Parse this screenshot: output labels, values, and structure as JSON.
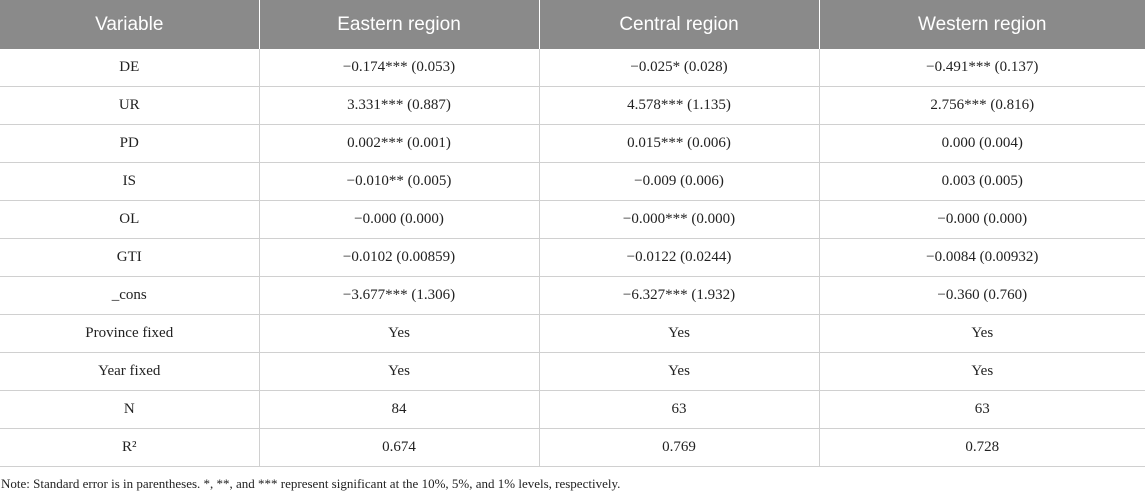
{
  "table": {
    "headers": [
      "Variable",
      "Eastern region",
      "Central region",
      "Western region"
    ],
    "rows": [
      [
        "DE",
        "−0.174*** (0.053)",
        "−0.025* (0.028)",
        "−0.491*** (0.137)"
      ],
      [
        "UR",
        "3.331*** (0.887)",
        "4.578*** (1.135)",
        "2.756*** (0.816)"
      ],
      [
        "PD",
        "0.002*** (0.001)",
        "0.015*** (0.006)",
        "0.000 (0.004)"
      ],
      [
        "IS",
        "−0.010** (0.005)",
        "−0.009 (0.006)",
        "0.003 (0.005)"
      ],
      [
        "OL",
        "−0.000 (0.000)",
        "−0.000*** (0.000)",
        "−0.000 (0.000)"
      ],
      [
        "GTI",
        "−0.0102 (0.00859)",
        "−0.0122 (0.0244)",
        "−0.0084 (0.00932)"
      ],
      [
        "_cons",
        "−3.677*** (1.306)",
        "−6.327*** (1.932)",
        "−0.360 (0.760)"
      ],
      [
        "Province fixed",
        "Yes",
        "Yes",
        "Yes"
      ],
      [
        "Year fixed",
        "Yes",
        "Yes",
        "Yes"
      ],
      [
        "N",
        "84",
        "63",
        "63"
      ],
      [
        "R²",
        "0.674",
        "0.769",
        "0.728"
      ]
    ]
  },
  "note": "Note: Standard error is in parentheses. *, **, and *** represent significant at the 10%, 5%, and 1% levels, respectively."
}
